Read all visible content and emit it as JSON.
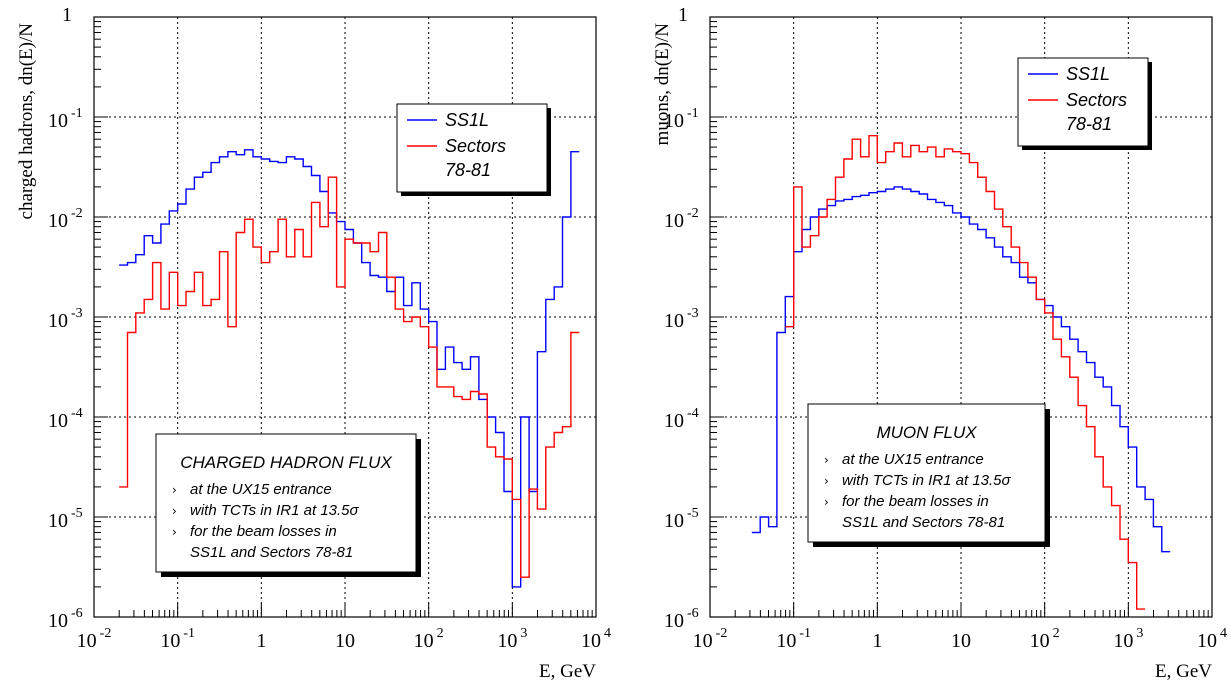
{
  "chart_data": [
    {
      "type": "line",
      "xlabel": "E, GeV",
      "ylabel": "charged hadrons, dn(E)/N",
      "xscale": "log",
      "yscale": "log",
      "xlim": [
        0.01,
        10000
      ],
      "ylim": [
        1e-06,
        1
      ],
      "grid": true,
      "x_ticks": [
        {
          "base": "10",
          "exp": "-2",
          "value": 0.01
        },
        {
          "base": "10",
          "exp": "-1",
          "value": 0.1
        },
        {
          "base": "1",
          "exp": "",
          "value": 1
        },
        {
          "base": "10",
          "exp": "",
          "value": 10
        },
        {
          "base": "10",
          "exp": "2",
          "value": 100
        },
        {
          "base": "10",
          "exp": "3",
          "value": 1000
        },
        {
          "base": "10",
          "exp": "4",
          "value": 10000
        }
      ],
      "y_ticks": [
        {
          "base": "1",
          "exp": "",
          "value": 1
        },
        {
          "base": "10",
          "exp": "-1",
          "value": 0.1
        },
        {
          "base": "10",
          "exp": "-2",
          "value": 0.01
        },
        {
          "base": "10",
          "exp": "-3",
          "value": 0.001
        },
        {
          "base": "10",
          "exp": "-4",
          "value": 0.0001
        },
        {
          "base": "10",
          "exp": "-5",
          "value": 1e-05
        },
        {
          "base": "10",
          "exp": "-6",
          "value": 1e-06
        }
      ],
      "legend": {
        "position": "upper-right",
        "entries": [
          {
            "label": "SS1L",
            "color": "#0000ff"
          },
          {
            "label": "Sectors",
            "label2": "78-81",
            "color": "#ff0000"
          }
        ]
      },
      "annotation": {
        "position": "lower-left",
        "title": "CHARGED HADRON FLUX",
        "bullet": "›",
        "lines": [
          {
            "text": "at the UX15 entrance",
            "bullet": true
          },
          {
            "text": "with TCTs in IR1 at 13.5σ",
            "bullet": true
          },
          {
            "text": "for the beam losses in",
            "bullet": true
          },
          {
            "text": "SS1L and Sectors 78-81",
            "bullet": false
          }
        ]
      },
      "series": [
        {
          "name": "SS1L",
          "color": "#0000ff",
          "step": "histogram",
          "x_edges_log10": [
            -1.7,
            -1.6,
            -1.5,
            -1.4,
            -1.3,
            -1.2,
            -1.1,
            -1.0,
            -0.9,
            -0.8,
            -0.7,
            -0.6,
            -0.5,
            -0.4,
            -0.3,
            -0.2,
            -0.1,
            0.0,
            0.1,
            0.2,
            0.3,
            0.4,
            0.5,
            0.6,
            0.7,
            0.8,
            0.9,
            1.0,
            1.1,
            1.2,
            1.3,
            1.4,
            1.5,
            1.6,
            1.7,
            1.8,
            1.9,
            2.0,
            2.1,
            2.2,
            2.3,
            2.4,
            2.5,
            2.6,
            2.7,
            2.8,
            2.9,
            3.0,
            3.1,
            3.2,
            3.3,
            3.4,
            3.5,
            3.6,
            3.7,
            3.8
          ],
          "values": [
            0.0033,
            0.0035,
            0.0042,
            0.0065,
            0.0055,
            0.0085,
            0.0115,
            0.0135,
            0.019,
            0.025,
            0.028,
            0.035,
            0.04,
            0.045,
            0.042,
            0.047,
            0.04,
            0.038,
            0.036,
            0.035,
            0.04,
            0.038,
            0.032,
            0.026,
            0.018,
            0.011,
            0.009,
            0.0075,
            0.0055,
            0.0035,
            0.0026,
            0.0025,
            0.0018,
            0.0025,
            0.0013,
            0.0022,
            0.0012,
            0.0009,
            0.0003,
            0.0005,
            0.00035,
            0.0003,
            0.0004,
            0.00015,
            0.0001,
            7e-05,
            1.8e-05,
            2e-06,
            0.0001,
            1.8e-05,
            0.00045,
            0.0015,
            0.002,
            0.01,
            0.045
          ]
        },
        {
          "name": "Sectors 78-81",
          "color": "#ff0000",
          "step": "histogram",
          "x_edges_log10": [
            -1.7,
            -1.6,
            -1.5,
            -1.4,
            -1.3,
            -1.2,
            -1.1,
            -1.0,
            -0.9,
            -0.8,
            -0.7,
            -0.6,
            -0.5,
            -0.4,
            -0.3,
            -0.2,
            -0.1,
            0.0,
            0.1,
            0.2,
            0.3,
            0.4,
            0.5,
            0.6,
            0.7,
            0.8,
            0.9,
            1.0,
            1.1,
            1.2,
            1.3,
            1.4,
            1.5,
            1.6,
            1.7,
            1.8,
            1.9,
            2.0,
            2.1,
            2.2,
            2.3,
            2.4,
            2.5,
            2.6,
            2.7,
            2.8,
            2.9,
            3.0,
            3.1,
            3.2,
            3.3,
            3.4,
            3.5,
            3.6,
            3.7,
            3.8
          ],
          "values": [
            2e-05,
            0.0007,
            0.0011,
            0.0015,
            0.0035,
            0.0012,
            0.0028,
            0.0013,
            0.0018,
            0.0028,
            0.0013,
            0.0015,
            0.0045,
            0.0008,
            0.007,
            0.0095,
            0.005,
            0.0035,
            0.0045,
            0.0095,
            0.004,
            0.0075,
            0.004,
            0.014,
            0.008,
            0.025,
            0.002,
            0.006,
            0.0055,
            0.0055,
            0.0045,
            0.007,
            0.0025,
            0.0012,
            0.0009,
            0.001,
            0.0008,
            0.0005,
            0.0002,
            0.0002,
            0.00016,
            0.00015,
            0.00018,
            0.00017,
            5e-05,
            4e-05,
            3.8e-05,
            1.5e-05,
            2.5e-06,
            1.9e-05,
            1.2e-05,
            5e-05,
            7e-05,
            8e-05,
            0.0007
          ]
        }
      ]
    },
    {
      "type": "line",
      "xlabel": "E, GeV",
      "ylabel": "muons, dn(E)/N",
      "xscale": "log",
      "yscale": "log",
      "xlim": [
        0.01,
        10000
      ],
      "ylim": [
        1e-06,
        1
      ],
      "grid": true,
      "x_ticks": [
        {
          "base": "10",
          "exp": "-2",
          "value": 0.01
        },
        {
          "base": "10",
          "exp": "-1",
          "value": 0.1
        },
        {
          "base": "1",
          "exp": "",
          "value": 1
        },
        {
          "base": "10",
          "exp": "",
          "value": 10
        },
        {
          "base": "10",
          "exp": "2",
          "value": 100
        },
        {
          "base": "10",
          "exp": "3",
          "value": 1000
        },
        {
          "base": "10",
          "exp": "4",
          "value": 10000
        }
      ],
      "y_ticks": [
        {
          "base": "1",
          "exp": "",
          "value": 1
        },
        {
          "base": "10",
          "exp": "-1",
          "value": 0.1
        },
        {
          "base": "10",
          "exp": "-2",
          "value": 0.01
        },
        {
          "base": "10",
          "exp": "-3",
          "value": 0.001
        },
        {
          "base": "10",
          "exp": "-4",
          "value": 0.0001
        },
        {
          "base": "10",
          "exp": "-5",
          "value": 1e-05
        },
        {
          "base": "10",
          "exp": "-6",
          "value": 1e-06
        }
      ],
      "legend": {
        "position": "upper-right",
        "entries": [
          {
            "label": "SS1L",
            "color": "#0000ff"
          },
          {
            "label": "Sectors",
            "label2": "78-81",
            "color": "#ff0000"
          }
        ]
      },
      "annotation": {
        "position": "lower-left",
        "title": "MUON FLUX",
        "bullet": "›",
        "lines": [
          {
            "text": "at the UX15 entrance",
            "bullet": true
          },
          {
            "text": "with TCTs in IR1 at 13.5σ",
            "bullet": true
          },
          {
            "text": "for the beam losses in",
            "bullet": true
          },
          {
            "text": "SS1L and Sectors 78-81",
            "bullet": false
          }
        ]
      },
      "series": [
        {
          "name": "SS1L",
          "color": "#0000ff",
          "step": "histogram",
          "x_edges_log10": [
            -1.5,
            -1.4,
            -1.3,
            -1.2,
            -1.1,
            -1.0,
            -0.9,
            -0.8,
            -0.7,
            -0.6,
            -0.5,
            -0.4,
            -0.3,
            -0.2,
            -0.1,
            0.0,
            0.1,
            0.2,
            0.3,
            0.4,
            0.5,
            0.6,
            0.7,
            0.8,
            0.9,
            1.0,
            1.1,
            1.2,
            1.3,
            1.4,
            1.5,
            1.6,
            1.7,
            1.8,
            1.9,
            2.0,
            2.1,
            2.2,
            2.3,
            2.4,
            2.5,
            2.6,
            2.7,
            2.8,
            2.9,
            3.0,
            3.1,
            3.2,
            3.3,
            3.4,
            3.5
          ],
          "values": [
            7e-06,
            1e-05,
            8e-06,
            0.0007,
            0.0016,
            0.0045,
            0.0075,
            0.01,
            0.012,
            0.013,
            0.0145,
            0.015,
            0.016,
            0.0165,
            0.0175,
            0.018,
            0.019,
            0.02,
            0.019,
            0.018,
            0.017,
            0.015,
            0.014,
            0.013,
            0.011,
            0.01,
            0.0085,
            0.0075,
            0.0062,
            0.005,
            0.004,
            0.0035,
            0.0025,
            0.0022,
            0.0015,
            0.0013,
            0.001,
            0.0008,
            0.0006,
            0.00045,
            0.00035,
            0.00025,
            0.0002,
            0.00013,
            8e-05,
            5e-05,
            2e-05,
            1.5e-05,
            8e-06,
            4.5e-06
          ]
        },
        {
          "name": "Sectors 78-81",
          "color": "#ff0000",
          "step": "histogram",
          "x_edges_log10": [
            -1.1,
            -1.0,
            -0.9,
            -0.8,
            -0.7,
            -0.6,
            -0.5,
            -0.4,
            -0.3,
            -0.2,
            -0.1,
            0.0,
            0.1,
            0.2,
            0.3,
            0.4,
            0.5,
            0.6,
            0.7,
            0.8,
            0.9,
            1.0,
            1.1,
            1.2,
            1.3,
            1.4,
            1.5,
            1.6,
            1.7,
            1.8,
            1.9,
            2.0,
            2.1,
            2.2,
            2.3,
            2.4,
            2.5,
            2.6,
            2.7,
            2.8,
            2.9,
            3.0,
            3.1,
            3.2
          ],
          "values": [
            0.0008,
            0.02,
            0.005,
            0.0065,
            0.01,
            0.015,
            0.025,
            0.038,
            0.06,
            0.04,
            0.065,
            0.035,
            0.045,
            0.055,
            0.04,
            0.052,
            0.045,
            0.05,
            0.04,
            0.048,
            0.045,
            0.043,
            0.035,
            0.025,
            0.018,
            0.012,
            0.008,
            0.005,
            0.0035,
            0.0025,
            0.0015,
            0.0011,
            0.0006,
            0.0004,
            0.00025,
            0.00013,
            8e-05,
            4e-05,
            2e-05,
            1.3e-05,
            6e-06,
            3.5e-06,
            1.2e-06
          ]
        }
      ]
    }
  ]
}
